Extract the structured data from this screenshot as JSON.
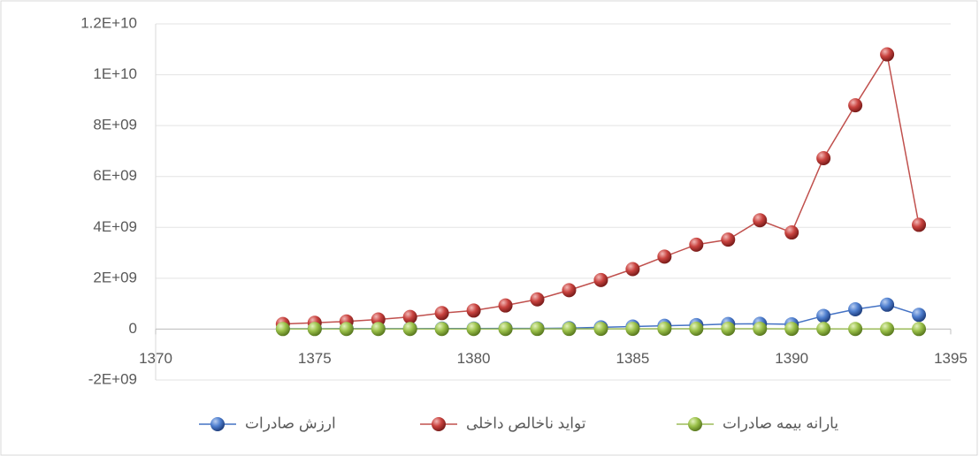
{
  "chart_data": {
    "type": "line",
    "x": [
      1374,
      1375,
      1376,
      1377,
      1378,
      1379,
      1380,
      1381,
      1382,
      1383,
      1384,
      1385,
      1386,
      1387,
      1388,
      1389,
      1390,
      1391,
      1392,
      1393,
      1394
    ],
    "series": [
      {
        "name": "ارزش صادرات",
        "color": "#4472c4",
        "values": [
          15000000,
          17000000,
          18000000,
          20000000,
          21000000,
          23000000,
          25000000,
          27000000,
          30000000,
          40000000,
          70000000,
          100000000,
          130000000,
          160000000,
          200000000,
          210000000,
          190000000,
          520000000,
          780000000,
          960000000,
          560000000
        ]
      },
      {
        "name": "تواید ناخالص داخلی",
        "color": "#c0504d",
        "values": [
          200000000,
          250000000,
          300000000,
          380000000,
          480000000,
          630000000,
          730000000,
          930000000,
          1170000000,
          1530000000,
          1930000000,
          2360000000,
          2850000000,
          3320000000,
          3520000000,
          4280000000,
          3800000000,
          6720000000,
          8800000000,
          10800000000,
          4100000000
        ]
      },
      {
        "name": "یارانه بیمه صادرات",
        "color": "#9bbb59",
        "values": [
          5000000,
          5000000,
          6000000,
          6000000,
          7000000,
          7000000,
          8000000,
          8000000,
          9000000,
          9000000,
          10000000,
          12000000,
          14000000,
          15000000,
          16000000,
          15000000,
          12000000,
          10000000,
          8000000,
          6000000,
          5000000
        ]
      }
    ],
    "xlim": [
      1370,
      1395
    ],
    "xticks": [
      1370,
      1375,
      1380,
      1385,
      1390,
      1395
    ],
    "ylim": [
      -2000000000,
      12000000000
    ],
    "yticks": [
      {
        "value": -2000000000,
        "label": "-2E+09"
      },
      0,
      {
        "value": 2000000000,
        "label": "2E+09"
      },
      {
        "value": 4000000000,
        "label": "4E+09"
      },
      {
        "value": 6000000000,
        "label": "6E+09"
      },
      {
        "value": 8000000000,
        "label": "8E+09"
      },
      {
        "value": 10000000000,
        "label": "1E+10"
      },
      {
        "value": 12000000000,
        "label": "1.2E+10"
      }
    ],
    "grid": true,
    "legend": "bottom"
  }
}
